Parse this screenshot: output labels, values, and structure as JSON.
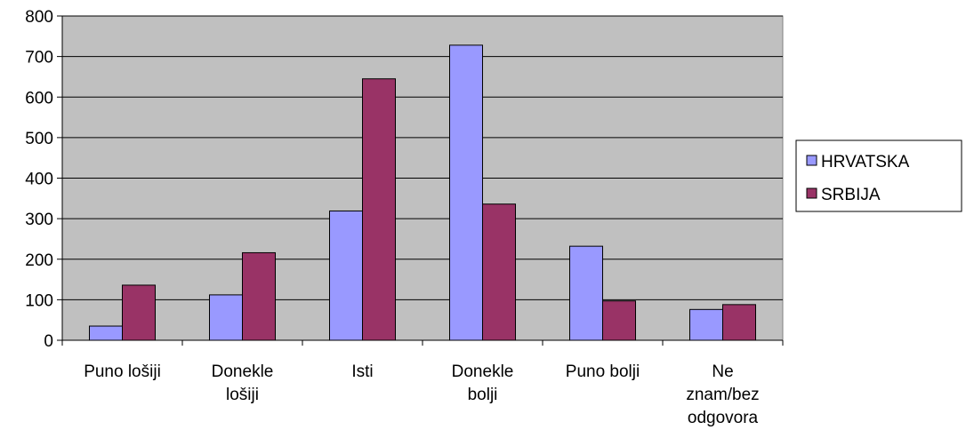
{
  "chart_data": {
    "type": "bar",
    "categories": [
      [
        "Puno lošiji"
      ],
      [
        "Donekle",
        "lošiji"
      ],
      [
        "Isti"
      ],
      [
        "Donekle",
        "bolji"
      ],
      [
        "Puno bolji"
      ],
      [
        "Ne",
        "znam/bez",
        "odgovora"
      ]
    ],
    "series": [
      {
        "name": "HRVATSKA",
        "color": "#9999ff",
        "values": [
          35,
          112,
          319,
          728,
          232,
          76
        ]
      },
      {
        "name": "SRBIJA",
        "color": "#993366",
        "values": [
          136,
          216,
          645,
          336,
          97,
          88
        ]
      }
    ],
    "ylim": [
      0,
      800
    ],
    "yticks": [
      "0",
      "100",
      "200",
      "300",
      "400",
      "500",
      "600",
      "700",
      "800"
    ],
    "grid": true,
    "plot_background": "#c0c0c0",
    "legend_position": "right"
  }
}
